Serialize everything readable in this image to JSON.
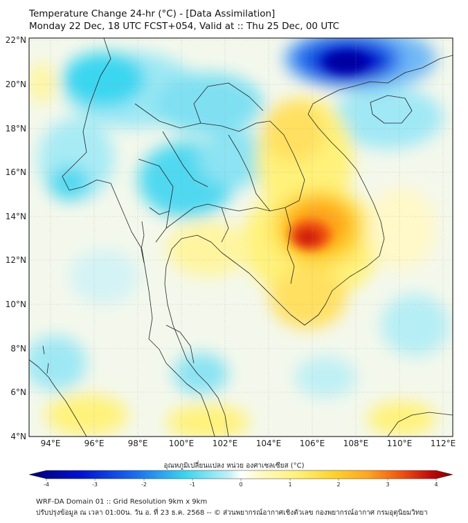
{
  "title": {
    "line1": "Temperature Change 24-hr (°C) - [Data Assimilation]",
    "line2": "Monday 22 Dec, 18 UTC FCST+054, Valid at :: Thu 25 Dec, 00 UTC"
  },
  "map": {
    "lat_labels": [
      "22°N",
      "20°N",
      "18°N",
      "16°N",
      "14°N",
      "12°N",
      "10°N",
      "8°N",
      "6°N",
      "4°N"
    ],
    "lon_labels": [
      "94°E",
      "96°E",
      "98°E",
      "100°E",
      "102°E",
      "104°E",
      "106°E",
      "108°E",
      "110°E",
      "112°E"
    ]
  },
  "colorbar": {
    "title": "อุณหภูมิเปลี่ยนแปลง หน่วย องศาเซลเซียส (°C)",
    "ticks": [
      "-4",
      "-3",
      "-2",
      "-1",
      "0",
      "1",
      "2",
      "3",
      "4"
    ]
  },
  "footer": {
    "line1": "WRF-DA Domain 01 :: Grid Resolution 9km x 9km",
    "line2": "ปรับปรุงข้อมูล ณ เวลา 01:00น. วัน อ. ที่ 23 ธ.ค. 2568 -- © ส่วนพยากรณ์อากาศเชิงตัวเลข กองพยากรณ์อากาศ กรมอุตุนิยมวิทยา"
  },
  "colors": {
    "neutral": "#f4f8ec",
    "cold_strong": "#0000c8",
    "cold": "#3bd6f0",
    "warm": "#fff27a",
    "hot": "#ffa51e",
    "hotter": "#e0200a"
  }
}
